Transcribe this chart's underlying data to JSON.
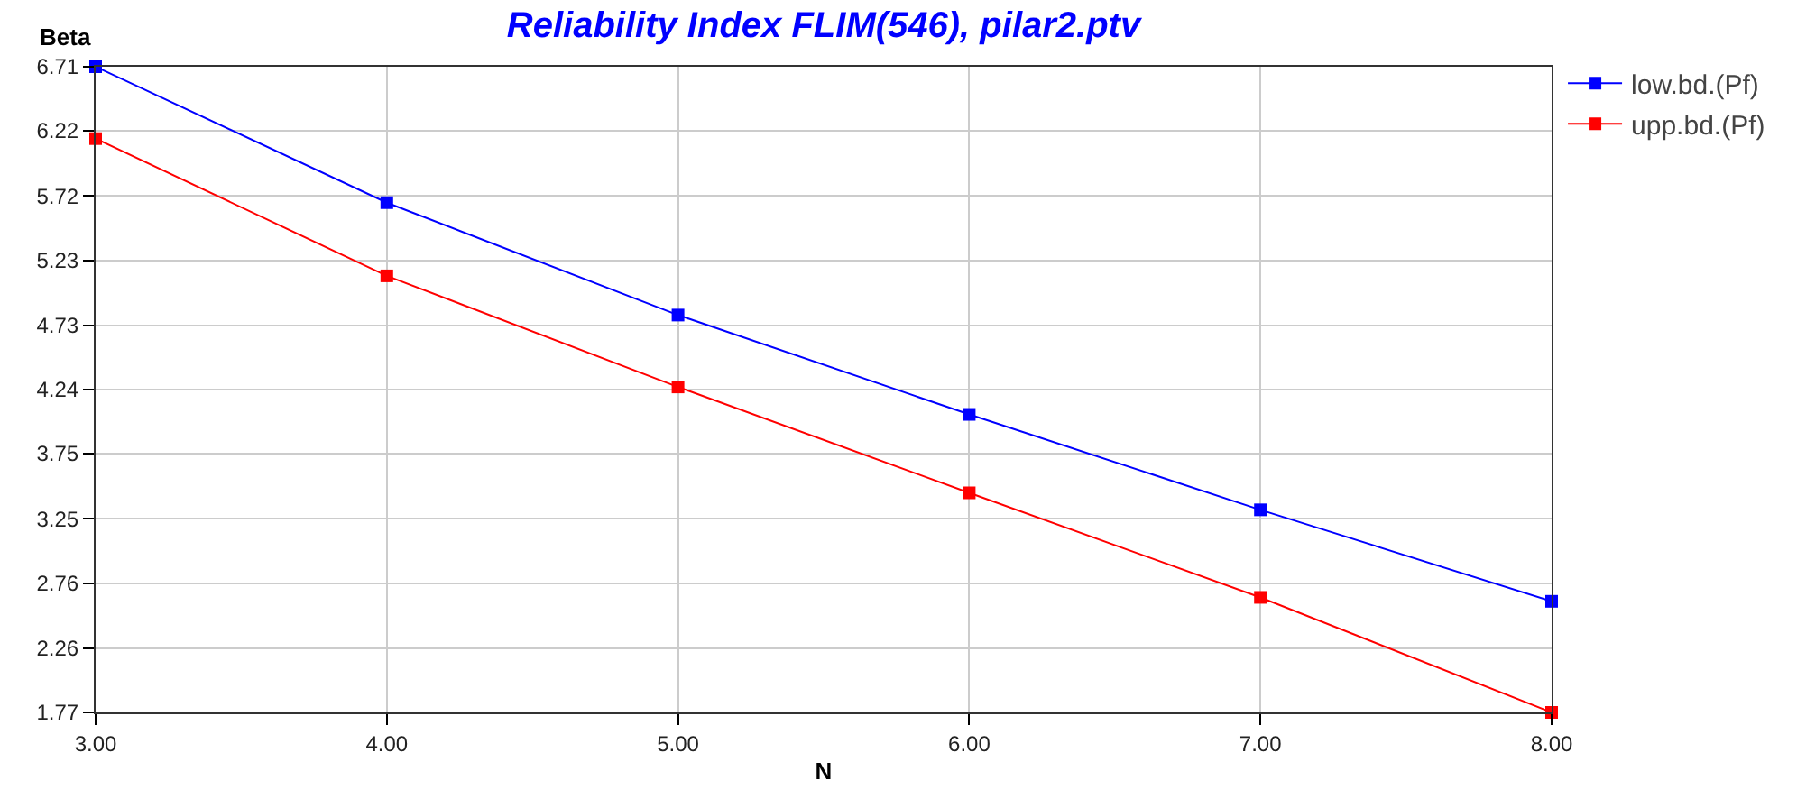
{
  "chart_data": {
    "type": "line",
    "title": "Reliability Index FLIM(546), pilar2.ptv",
    "xlabel": "N",
    "ylabel": "Beta",
    "x": [
      3,
      4,
      5,
      6,
      7,
      8
    ],
    "series": [
      {
        "name": "low.bd.(Pf)",
        "color": "#0000ff",
        "values": [
          6.71,
          5.67,
          4.81,
          4.05,
          3.32,
          2.62
        ]
      },
      {
        "name": "upp.bd.(Pf)",
        "color": "#ff0000",
        "values": [
          6.16,
          5.11,
          4.26,
          3.45,
          2.65,
          1.77
        ]
      }
    ],
    "xlim": [
      3,
      8
    ],
    "xticks": [
      {
        "value": 3,
        "label": "3.00"
      },
      {
        "value": 4,
        "label": "4.00"
      },
      {
        "value": 5,
        "label": "5.00"
      },
      {
        "value": 6,
        "label": "6.00"
      },
      {
        "value": 7,
        "label": "7.00"
      },
      {
        "value": 8,
        "label": "8.00"
      }
    ],
    "ylim": [
      1.77,
      6.71
    ],
    "yticks": [
      1.77,
      2.26,
      2.76,
      3.25,
      3.75,
      4.24,
      4.73,
      5.23,
      5.72,
      6.22,
      6.71
    ],
    "grid": true,
    "legend": "top right",
    "marker": "square",
    "line_style": "solid"
  }
}
